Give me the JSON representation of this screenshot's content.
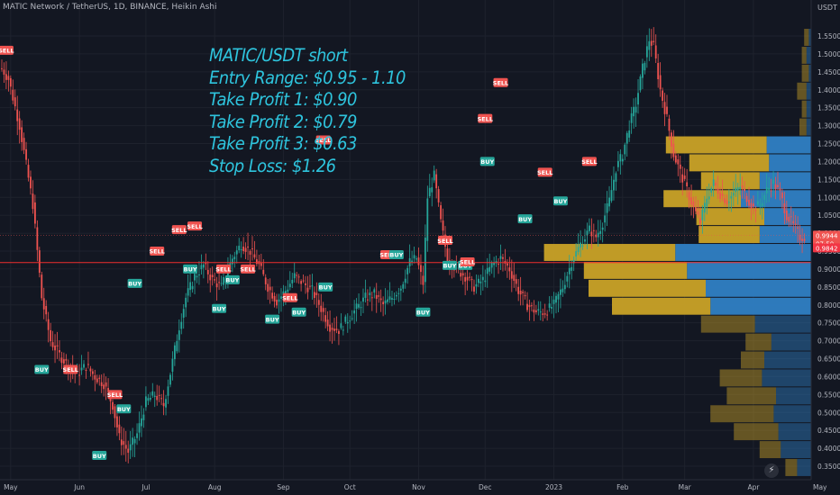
{
  "header": {
    "title": "MATIC Network / TetherUS, 1D, BINANCE, Heikin Ashi"
  },
  "axis": {
    "currency": "USDT"
  },
  "annotation": {
    "lines": [
      "MATIC/USDT short",
      "Entry Range: $0.95 - 1.10",
      "Take Profit 1: $0.90",
      "Take Profit 2: $0.79",
      "Take Profit 3: $0.63",
      "Stop Loss: $1.26"
    ]
  },
  "chart_data": {
    "type": "candlestick",
    "title": "MATIC Network / TetherUS, 1D, BINANCE, Heikin Ashi",
    "ylabel": "USDT",
    "ylim": [
      0.33,
      1.58
    ],
    "yticks": [
      0.35,
      0.4,
      0.45,
      0.5,
      0.55,
      0.6,
      0.65,
      0.7,
      0.75,
      0.8,
      0.85,
      0.9,
      0.95,
      1.0,
      1.05,
      1.1,
      1.15,
      1.2,
      1.25,
      1.3,
      1.35,
      1.4,
      1.45,
      1.5,
      1.55
    ],
    "ytick_labels": [
      "0.3500",
      "0.4000",
      "0.4500",
      "0.5000",
      "0.5500",
      "0.6000",
      "0.6500",
      "0.7000",
      "0.7500",
      "0.8000",
      "0.8500",
      "0.9000",
      "0.9500",
      "1.0000",
      "1.0500",
      "1.1000",
      "1.1500",
      "1.2000",
      "1.2500",
      "1.3000",
      "1.3500",
      "1.4000",
      "1.4500",
      "1.5000",
      "1.5500"
    ],
    "xtick_labels": [
      "May",
      "Jun",
      "Jul",
      "Aug",
      "Sep",
      "Oct",
      "Nov",
      "Dec",
      "2023",
      "Feb",
      "Mar",
      "Apr",
      "May"
    ],
    "xtick_index": [
      4,
      35,
      65,
      96,
      127,
      157,
      188,
      218,
      249,
      280,
      308,
      339,
      369
    ],
    "price_tags": [
      {
        "value": 0.9944,
        "label": "0.9944",
        "sub": "07:50",
        "color": "#ef5350"
      },
      {
        "value": 0.9842,
        "label": "0.9842",
        "color": "#f23645"
      }
    ],
    "horizontal_line": {
      "value": 0.918,
      "color": "#ef2e2e"
    },
    "dotted_line": {
      "value": 0.9944,
      "color": "#ef5350"
    },
    "path_points": [
      [
        0,
        1.46
      ],
      [
        3,
        1.43
      ],
      [
        8,
        1.3
      ],
      [
        14,
        1.08
      ],
      [
        18,
        0.82
      ],
      [
        22,
        0.7
      ],
      [
        26,
        0.66
      ],
      [
        30,
        0.63
      ],
      [
        34,
        0.61
      ],
      [
        38,
        0.63
      ],
      [
        42,
        0.6
      ],
      [
        46,
        0.58
      ],
      [
        50,
        0.52
      ],
      [
        53,
        0.43
      ],
      [
        57,
        0.39
      ],
      [
        61,
        0.44
      ],
      [
        65,
        0.53
      ],
      [
        69,
        0.55
      ],
      [
        73,
        0.52
      ],
      [
        76,
        0.61
      ],
      [
        80,
        0.74
      ],
      [
        83,
        0.82
      ],
      [
        87,
        0.88
      ],
      [
        91,
        0.91
      ],
      [
        95,
        0.87
      ],
      [
        99,
        0.85
      ],
      [
        104,
        0.93
      ],
      [
        108,
        0.97
      ],
      [
        112,
        0.95
      ],
      [
        116,
        0.91
      ],
      [
        120,
        0.85
      ],
      [
        124,
        0.81
      ],
      [
        128,
        0.84
      ],
      [
        132,
        0.88
      ],
      [
        136,
        0.86
      ],
      [
        140,
        0.84
      ],
      [
        144,
        0.79
      ],
      [
        148,
        0.74
      ],
      [
        152,
        0.73
      ],
      [
        156,
        0.76
      ],
      [
        160,
        0.79
      ],
      [
        164,
        0.82
      ],
      [
        168,
        0.83
      ],
      [
        172,
        0.8
      ],
      [
        176,
        0.82
      ],
      [
        180,
        0.85
      ],
      [
        184,
        0.92
      ],
      [
        187,
        0.93
      ],
      [
        190,
        0.86
      ],
      [
        192,
        1.1
      ],
      [
        195,
        1.16
      ],
      [
        198,
        1.03
      ],
      [
        201,
        0.93
      ],
      [
        205,
        0.9
      ],
      [
        209,
        0.88
      ],
      [
        213,
        0.85
      ],
      [
        217,
        0.87
      ],
      [
        221,
        0.91
      ],
      [
        225,
        0.93
      ],
      [
        229,
        0.9
      ],
      [
        233,
        0.84
      ],
      [
        237,
        0.8
      ],
      [
        241,
        0.78
      ],
      [
        245,
        0.78
      ],
      [
        249,
        0.8
      ],
      [
        253,
        0.85
      ],
      [
        257,
        0.92
      ],
      [
        261,
        0.97
      ],
      [
        265,
        1.01
      ],
      [
        268,
        0.99
      ],
      [
        271,
        1.03
      ],
      [
        274,
        1.09
      ],
      [
        277,
        1.18
      ],
      [
        280,
        1.22
      ],
      [
        283,
        1.3
      ],
      [
        286,
        1.36
      ],
      [
        289,
        1.46
      ],
      [
        292,
        1.54
      ],
      [
        294,
        1.52
      ],
      [
        297,
        1.4
      ],
      [
        300,
        1.32
      ],
      [
        303,
        1.22
      ],
      [
        306,
        1.17
      ],
      [
        309,
        1.12
      ],
      [
        312,
        1.07
      ],
      [
        315,
        1.03
      ],
      [
        318,
        1.1
      ],
      [
        321,
        1.14
      ],
      [
        324,
        1.11
      ],
      [
        327,
        1.09
      ],
      [
        330,
        1.11
      ],
      [
        333,
        1.13
      ],
      [
        336,
        1.1
      ],
      [
        339,
        1.07
      ],
      [
        342,
        1.08
      ],
      [
        345,
        1.12
      ],
      [
        348,
        1.14
      ],
      [
        351,
        1.11
      ],
      [
        354,
        1.05
      ],
      [
        357,
        1.02
      ],
      [
        360,
        0.99
      ],
      [
        362,
        0.99
      ]
    ],
    "signals": [
      {
        "label": "SELL",
        "index": 2,
        "value": 1.51
      },
      {
        "label": "BUY",
        "index": 18,
        "value": 0.62
      },
      {
        "label": "SELL",
        "index": 31,
        "value": 0.62
      },
      {
        "label": "BUY",
        "index": 44,
        "value": 0.38
      },
      {
        "label": "SELL",
        "index": 51,
        "value": 0.55
      },
      {
        "label": "BUY",
        "index": 55,
        "value": 0.51
      },
      {
        "label": "BUY",
        "index": 60,
        "value": 0.86
      },
      {
        "label": "SELL",
        "index": 70,
        "value": 0.95
      },
      {
        "label": "SELL",
        "index": 80,
        "value": 1.01
      },
      {
        "label": "SELL",
        "index": 87,
        "value": 1.02
      },
      {
        "label": "BUY",
        "index": 85,
        "value": 0.9
      },
      {
        "label": "SELL",
        "index": 100,
        "value": 0.9
      },
      {
        "label": "BUY",
        "index": 104,
        "value": 0.87
      },
      {
        "label": "SELL",
        "index": 111,
        "value": 0.9
      },
      {
        "label": "BUY",
        "index": 98,
        "value": 0.79
      },
      {
        "label": "BUY",
        "index": 122,
        "value": 0.76
      },
      {
        "label": "SELL",
        "index": 130,
        "value": 0.82
      },
      {
        "label": "BUY",
        "index": 134,
        "value": 0.78
      },
      {
        "label": "SELL",
        "index": 145,
        "value": 1.26
      },
      {
        "label": "BUY",
        "index": 146,
        "value": 0.85
      },
      {
        "label": "SELL",
        "index": 174,
        "value": 0.94
      },
      {
        "label": "BUY",
        "index": 178,
        "value": 0.94
      },
      {
        "label": "SELL",
        "index": 200,
        "value": 0.98
      },
      {
        "label": "BUY",
        "index": 209,
        "value": 0.91
      },
      {
        "label": "SELL",
        "index": 210,
        "value": 0.92
      },
      {
        "label": "SELL",
        "index": 218,
        "value": 1.32
      },
      {
        "label": "BUY",
        "index": 219,
        "value": 1.2
      },
      {
        "label": "SELL",
        "index": 225,
        "value": 1.42
      },
      {
        "label": "BUY",
        "index": 236,
        "value": 1.04
      },
      {
        "label": "SELL",
        "index": 245,
        "value": 1.17
      },
      {
        "label": "BUY",
        "index": 252,
        "value": 1.09
      },
      {
        "label": "SELL",
        "index": 265,
        "value": 1.2
      },
      {
        "label": "BUY",
        "index": 202,
        "value": 0.91
      },
      {
        "label": "BUY",
        "index": 190,
        "value": 0.78
      }
    ],
    "volume_profile": [
      {
        "low": 0.97,
        "high": 1.02,
        "up": 0.26,
        "down": 0.22
      },
      {
        "low": 1.02,
        "high": 1.07,
        "up": 0.29,
        "down": 0.2
      },
      {
        "low": 1.07,
        "high": 1.12,
        "up": 0.33,
        "down": 0.3
      },
      {
        "low": 1.12,
        "high": 1.17,
        "up": 0.25,
        "down": 0.22
      },
      {
        "low": 1.17,
        "high": 1.22,
        "up": 0.34,
        "down": 0.18
      },
      {
        "low": 1.22,
        "high": 1.27,
        "up": 0.43,
        "down": 0.19
      },
      {
        "low": 0.92,
        "high": 0.97,
        "up": 0.56,
        "down": 0.58
      },
      {
        "low": 0.87,
        "high": 0.92,
        "up": 0.44,
        "down": 0.53
      },
      {
        "low": 0.82,
        "high": 0.87,
        "up": 0.5,
        "down": 0.45
      },
      {
        "low": 0.77,
        "high": 0.82,
        "up": 0.42,
        "down": 0.43
      },
      {
        "low": 0.72,
        "high": 0.77,
        "up": 0.23,
        "down": 0.24
      },
      {
        "low": 0.67,
        "high": 0.72,
        "up": 0.11,
        "down": 0.17
      },
      {
        "low": 0.62,
        "high": 0.67,
        "up": 0.1,
        "down": 0.2
      },
      {
        "low": 0.57,
        "high": 0.62,
        "up": 0.18,
        "down": 0.21
      },
      {
        "low": 0.52,
        "high": 0.57,
        "up": 0.21,
        "down": 0.15
      },
      {
        "low": 0.47,
        "high": 0.52,
        "up": 0.27,
        "down": 0.16
      },
      {
        "low": 0.42,
        "high": 0.47,
        "up": 0.19,
        "down": 0.14
      },
      {
        "low": 0.37,
        "high": 0.42,
        "up": 0.09,
        "down": 0.13
      },
      {
        "low": 0.32,
        "high": 0.37,
        "up": 0.05,
        "down": 0.06
      },
      {
        "low": 1.27,
        "high": 1.32,
        "up": 0.03,
        "down": 0.02
      },
      {
        "low": 1.32,
        "high": 1.37,
        "up": 0.02,
        "down": 0.02
      },
      {
        "low": 1.37,
        "high": 1.42,
        "up": 0.04,
        "down": 0.02
      },
      {
        "low": 1.42,
        "high": 1.47,
        "up": 0.03,
        "down": 0.01
      },
      {
        "low": 1.47,
        "high": 1.52,
        "up": 0.02,
        "down": 0.02
      },
      {
        "low": 1.52,
        "high": 1.57,
        "up": 0.02,
        "down": 0.01
      }
    ],
    "colors": {
      "up": "#26a69a",
      "down": "#ef5350",
      "vp_up": "#c9a227",
      "vp_down": "#2f7fc4",
      "annotation": "#2ec4dd"
    }
  }
}
